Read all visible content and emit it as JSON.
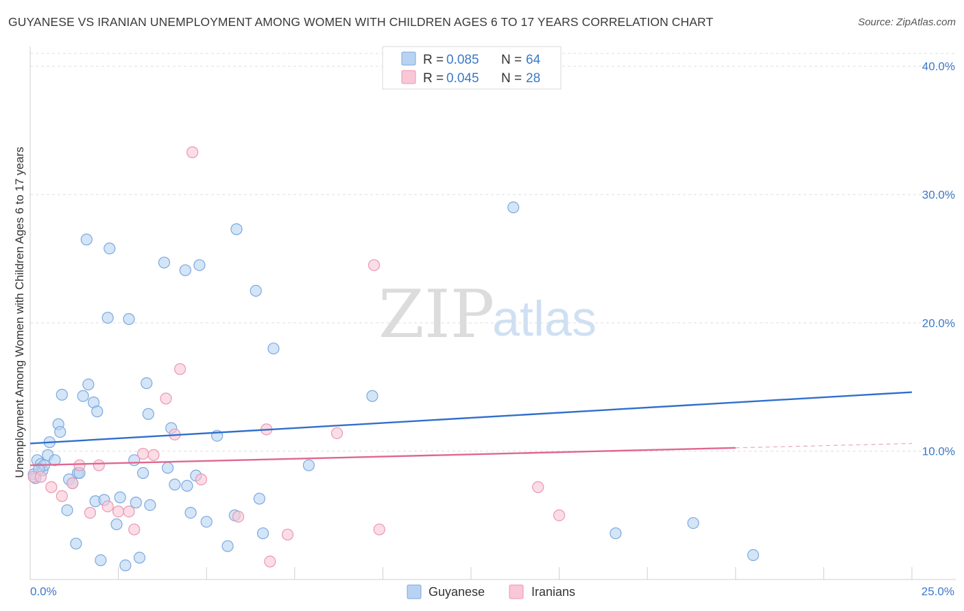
{
  "title": "GUYANESE VS IRANIAN UNEMPLOYMENT AMONG WOMEN WITH CHILDREN AGES 6 TO 17 YEARS CORRELATION CHART",
  "source": "Source: ZipAtlas.com",
  "watermark": {
    "zip": "ZIP",
    "atlas": "atlas"
  },
  "colors": {
    "guyanese_fill": "#b8d3f2",
    "guyanese_stroke": "#7aa8df",
    "guyanese_line": "#2f6fcc",
    "iranians_fill": "#f9c7d6",
    "iranians_stroke": "#ec95b0",
    "iranians_line": "#e0668f",
    "axis_text": "#3b78c8",
    "grid": "#dddddd"
  },
  "legend": {
    "rows": [
      {
        "r_label": "R = ",
        "r_value": "0.085",
        "n_label": "N = ",
        "n_value": "64"
      },
      {
        "r_label": "R = ",
        "r_value": "0.045",
        "n_label": "N = ",
        "n_value": "28"
      }
    ]
  },
  "chart_data": {
    "type": "scatter",
    "title": "GUYANESE VS IRANIAN UNEMPLOYMENT AMONG WOMEN WITH CHILDREN AGES 6 TO 17 YEARS CORRELATION CHART",
    "xlabel": "",
    "ylabel": "Unemployment Among Women with Children Ages 6 to 17 years",
    "xlim": [
      0,
      25
    ],
    "ylim": [
      0,
      41
    ],
    "x_tick_labels": [
      "0.0%",
      "25.0%"
    ],
    "y_ticks": [
      10,
      20,
      30,
      40
    ],
    "y_tick_labels": [
      "10.0%",
      "20.0%",
      "30.0%",
      "40.0%"
    ],
    "series": [
      {
        "name": "Guyanese",
        "R": 0.085,
        "N": 64,
        "trend": {
          "x": [
            0,
            25
          ],
          "y": [
            10.6,
            14.6
          ],
          "dashed_from": null
        },
        "points": [
          [
            0.1,
            8.2
          ],
          [
            0.2,
            9.3
          ],
          [
            0.3,
            9.0
          ],
          [
            0.35,
            8.5
          ],
          [
            0.4,
            8.9
          ],
          [
            0.5,
            9.7
          ],
          [
            0.55,
            10.7
          ],
          [
            0.7,
            9.3
          ],
          [
            0.8,
            12.1
          ],
          [
            0.85,
            11.5
          ],
          [
            0.9,
            14.4
          ],
          [
            1.05,
            5.4
          ],
          [
            1.1,
            7.8
          ],
          [
            1.2,
            7.5
          ],
          [
            1.3,
            2.8
          ],
          [
            1.35,
            8.3
          ],
          [
            1.4,
            8.3
          ],
          [
            1.5,
            14.3
          ],
          [
            1.6,
            26.5
          ],
          [
            1.65,
            15.2
          ],
          [
            1.8,
            13.8
          ],
          [
            1.85,
            6.1
          ],
          [
            1.9,
            13.1
          ],
          [
            2.0,
            1.5
          ],
          [
            2.1,
            6.2
          ],
          [
            2.2,
            20.4
          ],
          [
            2.25,
            25.8
          ],
          [
            2.45,
            4.3
          ],
          [
            2.55,
            6.4
          ],
          [
            2.7,
            1.1
          ],
          [
            2.8,
            20.3
          ],
          [
            2.95,
            9.3
          ],
          [
            3.0,
            6.0
          ],
          [
            3.1,
            1.7
          ],
          [
            3.2,
            8.3
          ],
          [
            3.3,
            15.3
          ],
          [
            3.35,
            12.9
          ],
          [
            3.4,
            5.8
          ],
          [
            3.8,
            24.7
          ],
          [
            3.9,
            8.7
          ],
          [
            4.0,
            11.8
          ],
          [
            4.1,
            7.4
          ],
          [
            4.4,
            24.1
          ],
          [
            4.45,
            7.3
          ],
          [
            4.55,
            5.2
          ],
          [
            4.7,
            8.1
          ],
          [
            4.8,
            24.5
          ],
          [
            5.0,
            4.5
          ],
          [
            5.3,
            11.2
          ],
          [
            5.6,
            2.6
          ],
          [
            5.8,
            5.0
          ],
          [
            5.85,
            27.3
          ],
          [
            6.4,
            22.5
          ],
          [
            6.5,
            6.3
          ],
          [
            6.6,
            3.6
          ],
          [
            6.9,
            18.0
          ],
          [
            7.9,
            8.9
          ],
          [
            9.7,
            14.3
          ],
          [
            13.7,
            29.0
          ],
          [
            16.6,
            3.6
          ],
          [
            18.8,
            4.4
          ],
          [
            20.5,
            1.9
          ],
          [
            0.15,
            7.9
          ],
          [
            0.25,
            8.6
          ]
        ]
      },
      {
        "name": "Iranians",
        "R": 0.045,
        "N": 28,
        "trend": {
          "x": [
            0,
            25
          ],
          "y": [
            8.9,
            10.6
          ],
          "dashed_from": 20.0
        },
        "points": [
          [
            0.1,
            8.0
          ],
          [
            0.3,
            8.0
          ],
          [
            0.6,
            7.2
          ],
          [
            0.9,
            6.5
          ],
          [
            1.2,
            7.5
          ],
          [
            1.4,
            8.9
          ],
          [
            1.7,
            5.2
          ],
          [
            1.95,
            8.9
          ],
          [
            2.2,
            5.7
          ],
          [
            2.5,
            5.3
          ],
          [
            2.8,
            5.3
          ],
          [
            2.95,
            3.9
          ],
          [
            3.2,
            9.8
          ],
          [
            3.5,
            9.7
          ],
          [
            3.85,
            14.1
          ],
          [
            4.1,
            11.3
          ],
          [
            4.25,
            16.4
          ],
          [
            4.6,
            33.3
          ],
          [
            4.85,
            7.8
          ],
          [
            5.9,
            4.9
          ],
          [
            6.7,
            11.7
          ],
          [
            6.8,
            1.4
          ],
          [
            7.3,
            3.5
          ],
          [
            8.7,
            11.4
          ],
          [
            9.75,
            24.5
          ],
          [
            9.9,
            3.9
          ],
          [
            14.4,
            7.2
          ],
          [
            15.0,
            5.0
          ]
        ]
      }
    ]
  },
  "bottom_legend": [
    "Guyanese",
    "Iranians"
  ]
}
